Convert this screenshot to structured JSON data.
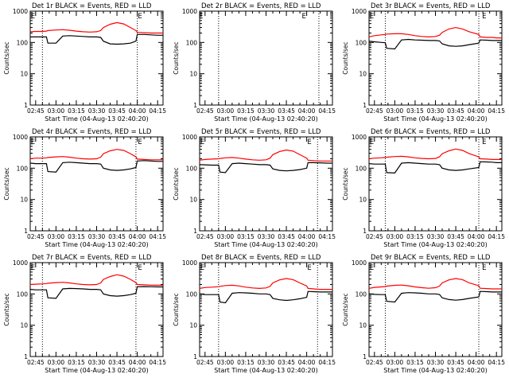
{
  "colors": {
    "events": "#000000",
    "lld": "#ff0000",
    "background": "#ffffff"
  },
  "chart_data": [
    {
      "type": "line",
      "title": "Det 1r  BLACK = Events, RED = LLD",
      "xlabel": "Start Time (04-Aug-13 02:40:20)",
      "ylabel": "Counts/sec",
      "yscale": "log",
      "ylim": [
        1,
        1000
      ],
      "xlim": [
        "02:41",
        "04:19"
      ],
      "xticks": [
        "02:45",
        "03:00",
        "03:15",
        "03:30",
        "03:45",
        "04:00",
        "04:15"
      ],
      "yticks": [
        "1",
        "10",
        "100",
        "1000"
      ],
      "vlines": [
        "02:50",
        "04:00"
      ],
      "markers": [
        {
          "time": "02:43",
          "label": "E"
        },
        {
          "time": "04:02",
          "label": "E"
        }
      ],
      "x": [
        "02:41",
        "02:45",
        "02:50",
        "02:53",
        "02:54",
        "03:00",
        "03:05",
        "03:10",
        "03:15",
        "03:20",
        "03:25",
        "03:30",
        "03:33",
        "03:35",
        "03:40",
        "03:45",
        "03:50",
        "03:55",
        "03:59",
        "04:00",
        "04:05",
        "04:10",
        "04:15",
        "04:19"
      ],
      "series": [
        {
          "name": "Events",
          "values": [
            150,
            150,
            150,
            150,
            95,
            95,
            160,
            165,
            160,
            155,
            150,
            150,
            145,
            110,
            90,
            88,
            90,
            95,
            110,
            180,
            180,
            175,
            170,
            170
          ]
        },
        {
          "name": "LLD",
          "values": [
            220,
            225,
            225,
            230,
            240,
            250,
            255,
            245,
            230,
            220,
            215,
            220,
            240,
            300,
            380,
            430,
            390,
            300,
            240,
            210,
            205,
            200,
            200,
            200
          ]
        }
      ]
    },
    {
      "type": "line",
      "title": "Det 2r  BLACK = Events, RED = LLD",
      "xlabel": "Start Time (04-Aug-13 02:40:20)",
      "ylabel": "Counts/sec",
      "yscale": "log",
      "ylim": [
        1,
        1000
      ],
      "xlim": [
        "02:41",
        "04:19"
      ],
      "xticks": [
        "02:45",
        "03:00",
        "03:15",
        "03:30",
        "03:45",
        "04:00",
        "04:15"
      ],
      "yticks": [
        "1",
        "10",
        "100",
        "1000"
      ],
      "vlines": [
        "02:55",
        "04:09"
      ],
      "markers": [
        {
          "time": "02:42",
          "label": "E"
        },
        {
          "time": "03:58",
          "label": "E"
        }
      ],
      "x": [],
      "series": []
    },
    {
      "type": "line",
      "title": "Det 3r  BLACK = Events, RED = LLD",
      "xlabel": "Start Time (04-Aug-13 02:40:20)",
      "ylabel": "Counts/sec",
      "yscale": "log",
      "ylim": [
        1,
        1000
      ],
      "xlim": [
        "02:41",
        "04:19"
      ],
      "xticks": [
        "02:45",
        "03:00",
        "03:15",
        "03:30",
        "03:45",
        "04:00",
        "04:15"
      ],
      "yticks": [
        "1",
        "10",
        "100",
        "1000"
      ],
      "vlines": [
        "02:53",
        "04:02"
      ],
      "markers": [
        {
          "time": "02:43",
          "label": "E"
        },
        {
          "time": "04:06",
          "label": "E"
        }
      ],
      "x": [
        "02:41",
        "02:45",
        "02:50",
        "02:53",
        "02:54",
        "03:00",
        "03:05",
        "03:10",
        "03:15",
        "03:20",
        "03:25",
        "03:30",
        "03:33",
        "03:35",
        "03:40",
        "03:45",
        "03:50",
        "03:55",
        "04:02",
        "04:03",
        "04:08",
        "04:12",
        "04:15",
        "04:19"
      ],
      "series": [
        {
          "name": "Events",
          "values": [
            110,
            105,
            100,
            98,
            65,
            62,
            120,
            125,
            120,
            118,
            115,
            115,
            112,
            90,
            78,
            75,
            78,
            85,
            95,
            120,
            118,
            115,
            115,
            115
          ]
        },
        {
          "name": "LLD",
          "values": [
            150,
            165,
            175,
            180,
            185,
            190,
            190,
            180,
            165,
            155,
            150,
            155,
            170,
            210,
            270,
            300,
            270,
            220,
            180,
            150,
            145,
            145,
            140,
            140
          ]
        }
      ]
    },
    {
      "type": "line",
      "title": "Det 4r  BLACK = Events, RED = LLD",
      "xlabel": "Start Time (04-Aug-13 02:40:20)",
      "ylabel": "Counts/sec",
      "yscale": "log",
      "ylim": [
        1,
        1000
      ],
      "xlim": [
        "02:41",
        "04:19"
      ],
      "xticks": [
        "02:45",
        "03:00",
        "03:15",
        "03:30",
        "03:45",
        "04:00",
        "04:15"
      ],
      "yticks": [
        "1",
        "10",
        "100",
        "1000"
      ],
      "vlines": [
        "02:50",
        "03:59"
      ],
      "markers": [
        {
          "time": "02:43",
          "label": "E"
        },
        {
          "time": "04:02",
          "label": "E"
        }
      ],
      "x": [
        "02:41",
        "02:45",
        "02:50",
        "02:53",
        "02:54",
        "03:00",
        "03:05",
        "03:10",
        "03:15",
        "03:20",
        "03:25",
        "03:30",
        "03:33",
        "03:35",
        "03:40",
        "03:45",
        "03:50",
        "03:55",
        "03:59",
        "04:00",
        "04:05",
        "04:10",
        "04:15",
        "04:19"
      ],
      "series": [
        {
          "name": "Events",
          "values": [
            145,
            140,
            140,
            140,
            78,
            75,
            150,
            155,
            150,
            145,
            140,
            140,
            135,
            100,
            88,
            85,
            88,
            95,
            105,
            170,
            175,
            170,
            165,
            165
          ]
        },
        {
          "name": "LLD",
          "values": [
            200,
            210,
            210,
            215,
            220,
            230,
            235,
            225,
            210,
            200,
            195,
            200,
            225,
            290,
            360,
            400,
            370,
            290,
            230,
            195,
            190,
            185,
            185,
            185
          ]
        }
      ]
    },
    {
      "type": "line",
      "title": "Det 5r  BLACK = Events, RED = LLD",
      "xlabel": "Start Time (04-Aug-13 02:40:20)",
      "ylabel": "Counts/sec",
      "yscale": "log",
      "ylim": [
        1,
        1000
      ],
      "xlim": [
        "02:41",
        "04:19"
      ],
      "xticks": [
        "02:45",
        "03:00",
        "03:15",
        "03:30",
        "03:45",
        "04:00",
        "04:15"
      ],
      "yticks": [
        "1",
        "10",
        "100",
        "1000"
      ],
      "vlines": [
        "02:55",
        "04:08"
      ],
      "markers": [
        {
          "time": "02:43",
          "label": "E"
        },
        {
          "time": "04:02",
          "label": "E"
        }
      ],
      "x": [
        "02:41",
        "02:45",
        "02:50",
        "02:55",
        "02:56",
        "03:00",
        "03:05",
        "03:10",
        "03:15",
        "03:20",
        "03:25",
        "03:30",
        "03:33",
        "03:35",
        "03:40",
        "03:45",
        "03:50",
        "03:55",
        "04:00",
        "04:01",
        "04:05",
        "04:10",
        "04:15",
        "04:19"
      ],
      "series": [
        {
          "name": "Events",
          "values": [
            130,
            128,
            125,
            125,
            75,
            72,
            140,
            145,
            140,
            135,
            130,
            130,
            125,
            95,
            85,
            82,
            85,
            90,
            100,
            150,
            150,
            148,
            145,
            145
          ]
        },
        {
          "name": "LLD",
          "values": [
            180,
            190,
            195,
            200,
            205,
            215,
            220,
            210,
            195,
            185,
            180,
            185,
            210,
            270,
            340,
            380,
            350,
            270,
            210,
            180,
            175,
            170,
            170,
            170
          ]
        }
      ]
    },
    {
      "type": "line",
      "title": "Det 6r  BLACK = Events, RED = LLD",
      "xlabel": "Start Time (04-Aug-13 02:40:20)",
      "ylabel": "Counts/sec",
      "yscale": "log",
      "ylim": [
        1,
        1000
      ],
      "xlim": [
        "02:41",
        "04:19"
      ],
      "xticks": [
        "02:45",
        "03:00",
        "03:15",
        "03:30",
        "03:45",
        "04:00",
        "04:15"
      ],
      "yticks": [
        "1",
        "10",
        "100",
        "1000"
      ],
      "vlines": [
        "02:53",
        "04:02"
      ],
      "markers": [
        {
          "time": "02:43",
          "label": "E"
        },
        {
          "time": "04:06",
          "label": "E"
        }
      ],
      "x": [
        "02:41",
        "02:45",
        "02:50",
        "02:53",
        "02:54",
        "03:00",
        "03:05",
        "03:10",
        "03:15",
        "03:20",
        "03:25",
        "03:30",
        "03:33",
        "03:35",
        "03:40",
        "03:45",
        "03:50",
        "03:55",
        "04:02",
        "04:03",
        "04:08",
        "04:12",
        "04:15",
        "04:19"
      ],
      "series": [
        {
          "name": "Events",
          "values": [
            140,
            135,
            135,
            135,
            72,
            70,
            145,
            150,
            145,
            140,
            135,
            135,
            130,
            100,
            88,
            85,
            88,
            95,
            105,
            160,
            158,
            155,
            150,
            150
          ]
        },
        {
          "name": "LLD",
          "values": [
            200,
            210,
            215,
            220,
            225,
            235,
            240,
            230,
            215,
            205,
            200,
            205,
            230,
            290,
            360,
            410,
            370,
            290,
            230,
            200,
            195,
            190,
            190,
            190
          ]
        }
      ]
    },
    {
      "type": "line",
      "title": "Det 7r  BLACK = Events, RED = LLD",
      "xlabel": "Start Time (04-Aug-13 02:40:20)",
      "ylabel": "Counts/sec",
      "yscale": "log",
      "ylim": [
        1,
        1000
      ],
      "xlim": [
        "02:41",
        "04:19"
      ],
      "xticks": [
        "02:45",
        "03:00",
        "03:15",
        "03:30",
        "03:45",
        "04:00",
        "04:15"
      ],
      "yticks": [
        "1",
        "10",
        "100",
        "1000"
      ],
      "vlines": [
        "02:50",
        "03:59"
      ],
      "markers": [
        {
          "time": "02:43",
          "label": "E"
        },
        {
          "time": "04:02",
          "label": "E"
        }
      ],
      "x": [
        "02:41",
        "02:45",
        "02:50",
        "02:53",
        "02:54",
        "03:00",
        "03:05",
        "03:10",
        "03:15",
        "03:20",
        "03:25",
        "03:30",
        "03:33",
        "03:35",
        "03:40",
        "03:45",
        "03:50",
        "03:55",
        "03:59",
        "04:00",
        "04:05",
        "04:10",
        "04:15",
        "04:19"
      ],
      "series": [
        {
          "name": "Events",
          "values": [
            140,
            135,
            135,
            135,
            75,
            72,
            145,
            150,
            148,
            145,
            140,
            140,
            135,
            100,
            88,
            85,
            88,
            95,
            105,
            170,
            172,
            170,
            168,
            168
          ]
        },
        {
          "name": "LLD",
          "values": [
            200,
            205,
            210,
            215,
            220,
            230,
            235,
            225,
            210,
            200,
            195,
            200,
            225,
            290,
            360,
            410,
            370,
            290,
            230,
            200,
            195,
            190,
            190,
            190
          ]
        }
      ]
    },
    {
      "type": "line",
      "title": "Det 8r  BLACK = Events, RED = LLD",
      "xlabel": "Start Time (04-Aug-13 02:40:20)",
      "ylabel": "Counts/sec",
      "yscale": "log",
      "ylim": [
        1,
        1000
      ],
      "xlim": [
        "02:41",
        "04:19"
      ],
      "xticks": [
        "02:45",
        "03:00",
        "03:15",
        "03:30",
        "03:45",
        "04:00",
        "04:15"
      ],
      "yticks": [
        "1",
        "10",
        "100",
        "1000"
      ],
      "vlines": [
        "02:55",
        "04:08"
      ],
      "markers": [
        {
          "time": "02:43",
          "label": "E"
        },
        {
          "time": "04:02",
          "label": "E"
        }
      ],
      "x": [
        "02:41",
        "02:45",
        "02:50",
        "02:55",
        "02:56",
        "03:00",
        "03:05",
        "03:10",
        "03:15",
        "03:20",
        "03:25",
        "03:30",
        "03:33",
        "03:35",
        "03:40",
        "03:45",
        "03:50",
        "03:55",
        "04:00",
        "04:01",
        "04:05",
        "04:10",
        "04:15",
        "04:19"
      ],
      "series": [
        {
          "name": "Events",
          "values": [
            100,
            95,
            95,
            95,
            55,
            52,
            105,
            110,
            108,
            105,
            100,
            100,
            95,
            72,
            65,
            62,
            65,
            70,
            78,
            120,
            118,
            115,
            115,
            115
          ]
        },
        {
          "name": "LLD",
          "values": [
            150,
            160,
            165,
            170,
            175,
            185,
            190,
            180,
            165,
            155,
            150,
            155,
            175,
            225,
            280,
            310,
            285,
            225,
            180,
            150,
            145,
            140,
            140,
            140
          ]
        }
      ]
    },
    {
      "type": "line",
      "title": "Det 9r  BLACK = Events, RED = LLD",
      "xlabel": "Start Time (04-Aug-13 02:40:20)",
      "ylabel": "Counts/sec",
      "yscale": "log",
      "ylim": [
        1,
        1000
      ],
      "xlim": [
        "02:41",
        "04:19"
      ],
      "xticks": [
        "02:45",
        "03:00",
        "03:15",
        "03:30",
        "03:45",
        "04:00",
        "04:15"
      ],
      "yticks": [
        "1",
        "10",
        "100",
        "1000"
      ],
      "vlines": [
        "02:53",
        "04:02"
      ],
      "markers": [
        {
          "time": "02:43",
          "label": "E"
        },
        {
          "time": "04:06",
          "label": "E"
        }
      ],
      "x": [
        "02:41",
        "02:45",
        "02:50",
        "02:53",
        "02:54",
        "03:00",
        "03:05",
        "03:10",
        "03:15",
        "03:20",
        "03:25",
        "03:30",
        "03:33",
        "03:35",
        "03:40",
        "03:45",
        "03:50",
        "03:55",
        "04:02",
        "04:03",
        "04:08",
        "04:12",
        "04:15",
        "04:19"
      ],
      "series": [
        {
          "name": "Events",
          "values": [
            100,
            97,
            95,
            95,
            58,
            55,
            105,
            110,
            108,
            105,
            100,
            100,
            96,
            75,
            66,
            63,
            66,
            72,
            80,
            120,
            118,
            115,
            115,
            115
          ]
        },
        {
          "name": "LLD",
          "values": [
            150,
            162,
            168,
            172,
            178,
            188,
            192,
            182,
            168,
            158,
            152,
            158,
            178,
            225,
            280,
            310,
            285,
            225,
            182,
            152,
            148,
            145,
            145,
            145
          ]
        }
      ]
    }
  ]
}
